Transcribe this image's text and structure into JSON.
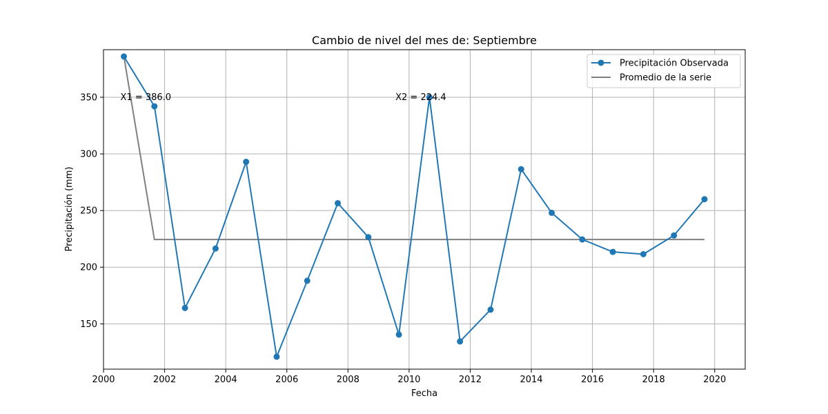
{
  "chart_data": {
    "type": "line",
    "title": "Cambio de nivel del mes de: Septiembre",
    "xlabel": "Fecha",
    "ylabel": "Precipitación (mm)",
    "xlim": [
      "2000-01-01",
      "2020-12-31"
    ],
    "ylim": [
      110,
      392
    ],
    "x_ticks": [
      "2000",
      "2002",
      "2004",
      "2006",
      "2008",
      "2010",
      "2012",
      "2014",
      "2016",
      "2018",
      "2020"
    ],
    "y_ticks": [
      150,
      200,
      250,
      300,
      350
    ],
    "grid": true,
    "legend_position": "top-right",
    "x": [
      "2000-09",
      "2001-09",
      "2002-09",
      "2003-09",
      "2004-09",
      "2005-09",
      "2006-09",
      "2007-09",
      "2008-09",
      "2009-09",
      "2010-09",
      "2011-09",
      "2012-09",
      "2013-09",
      "2014-09",
      "2015-09",
      "2016-09",
      "2017-09",
      "2018-09",
      "2019-09"
    ],
    "series": [
      {
        "name": "Precipitación Observada",
        "color": "#1f77b4",
        "marker": "circle",
        "x": [
          "2000-09",
          "2001-09",
          "2002-09",
          "2003-09",
          "2004-09",
          "2005-09",
          "2006-09",
          "2007-09",
          "2008-09",
          "2009-09",
          "2010-09",
          "2011-09",
          "2012-09",
          "2013-09",
          "2014-09",
          "2015-09",
          "2016-09",
          "2017-09",
          "2018-09",
          "2019-09"
        ],
        "values": [
          386.0,
          342.0,
          164.0,
          216.5,
          293.0,
          121.0,
          188.0,
          256.5,
          226.5,
          140.5,
          350.0,
          134.5,
          162.5,
          286.5,
          248.0,
          224.5,
          213.5,
          211.5,
          228.0,
          260.0
        ]
      },
      {
        "name": "Promedio de la serie",
        "color": "#7f7f7f",
        "marker": "none",
        "x": [
          "2000-09",
          "2001-09",
          "2019-09"
        ],
        "values": [
          386.0,
          224.4,
          224.4
        ]
      }
    ],
    "annotations": [
      {
        "text": "X1 = 386.0",
        "x": "2000-09",
        "y": 350
      },
      {
        "text": "X2 = 224.4",
        "x": "2009-09",
        "y": 350
      }
    ]
  }
}
